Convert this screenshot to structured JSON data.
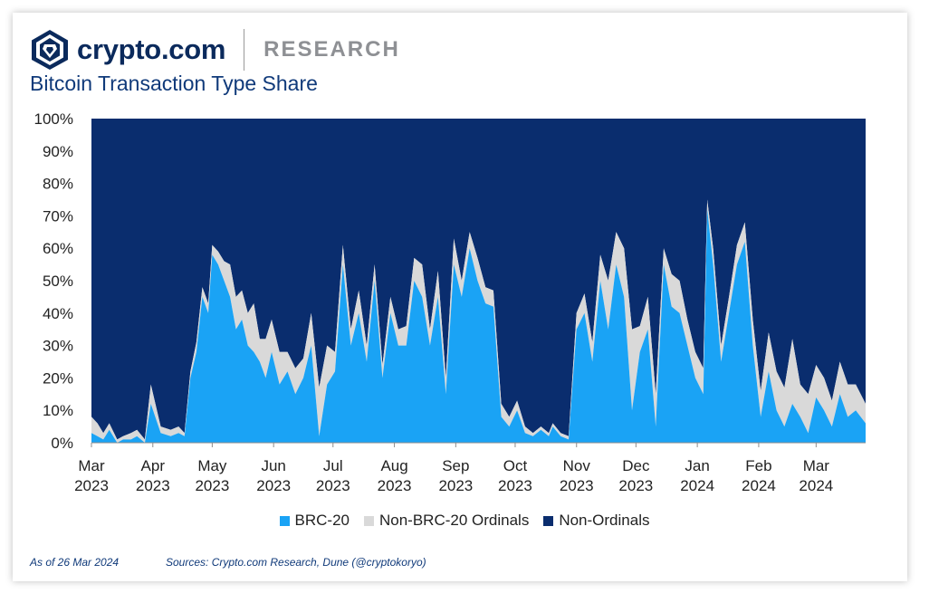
{
  "header": {
    "brand_name": "crypto.com",
    "brand_tag": "RESEARCH",
    "logo_icon": "crypto-com-lion-shield"
  },
  "chart_data": {
    "type": "area",
    "stacked": true,
    "percent": true,
    "title": "Bitcoin Transaction Type Share",
    "ylim": [
      0,
      100
    ],
    "y_ticks": [
      "0%",
      "10%",
      "20%",
      "30%",
      "40%",
      "50%",
      "60%",
      "70%",
      "80%",
      "90%",
      "100%"
    ],
    "x_ticks": [
      {
        "month": "Mar",
        "year": "2023"
      },
      {
        "month": "Apr",
        "year": "2023"
      },
      {
        "month": "May",
        "year": "2023"
      },
      {
        "month": "Jun",
        "year": "2023"
      },
      {
        "month": "Jul",
        "year": "2023"
      },
      {
        "month": "Aug",
        "year": "2023"
      },
      {
        "month": "Sep",
        "year": "2023"
      },
      {
        "month": "Oct",
        "year": "2023"
      },
      {
        "month": "Nov",
        "year": "2023"
      },
      {
        "month": "Dec",
        "year": "2023"
      },
      {
        "month": "Jan",
        "year": "2024"
      },
      {
        "month": "Feb",
        "year": "2024"
      },
      {
        "month": "Mar",
        "year": "2024"
      }
    ],
    "x": [
      "2023-03-01",
      "2023-03-04",
      "2023-03-07",
      "2023-03-10",
      "2023-03-14",
      "2023-03-17",
      "2023-03-21",
      "2023-03-24",
      "2023-03-28",
      "2023-03-31",
      "2023-04-05",
      "2023-04-10",
      "2023-04-14",
      "2023-04-17",
      "2023-04-20",
      "2023-04-23",
      "2023-04-26",
      "2023-04-29",
      "2023-05-01",
      "2023-05-04",
      "2023-05-07",
      "2023-05-10",
      "2023-05-13",
      "2023-05-16",
      "2023-05-19",
      "2023-05-22",
      "2023-05-25",
      "2023-05-28",
      "2023-05-31",
      "2023-06-04",
      "2023-06-08",
      "2023-06-12",
      "2023-06-16",
      "2023-06-20",
      "2023-06-24",
      "2023-06-28",
      "2023-07-02",
      "2023-07-06",
      "2023-07-10",
      "2023-07-14",
      "2023-07-18",
      "2023-07-22",
      "2023-07-26",
      "2023-07-30",
      "2023-08-03",
      "2023-08-07",
      "2023-08-11",
      "2023-08-15",
      "2023-08-19",
      "2023-08-23",
      "2023-08-27",
      "2023-08-31",
      "2023-09-04",
      "2023-09-08",
      "2023-09-12",
      "2023-09-16",
      "2023-09-20",
      "2023-09-24",
      "2023-09-28",
      "2023-10-02",
      "2023-10-06",
      "2023-10-10",
      "2023-10-14",
      "2023-10-18",
      "2023-10-20",
      "2023-10-24",
      "2023-10-28",
      "2023-11-01",
      "2023-11-05",
      "2023-11-09",
      "2023-11-13",
      "2023-11-17",
      "2023-11-21",
      "2023-11-25",
      "2023-11-29",
      "2023-12-03",
      "2023-12-07",
      "2023-12-11",
      "2023-12-15",
      "2023-12-19",
      "2023-12-23",
      "2023-12-27",
      "2023-12-31",
      "2024-01-04",
      "2024-01-06",
      "2024-01-09",
      "2024-01-13",
      "2024-01-17",
      "2024-01-21",
      "2024-01-25",
      "2024-01-29",
      "2024-02-02",
      "2024-02-06",
      "2024-02-10",
      "2024-02-14",
      "2024-02-18",
      "2024-02-22",
      "2024-02-26",
      "2024-03-01",
      "2024-03-05",
      "2024-03-09",
      "2024-03-13",
      "2024-03-17",
      "2024-03-21",
      "2024-03-26"
    ],
    "series": [
      {
        "name": "BRC-20",
        "values": [
          3,
          2,
          1,
          4,
          0,
          1,
          1,
          2,
          0,
          12,
          3,
          2,
          3,
          2,
          20,
          28,
          45,
          40,
          58,
          55,
          50,
          45,
          35,
          38,
          30,
          28,
          25,
          20,
          28,
          18,
          22,
          15,
          20,
          30,
          2,
          18,
          22,
          55,
          30,
          40,
          25,
          50,
          20,
          40,
          30,
          30,
          50,
          45,
          30,
          45,
          15,
          55,
          45,
          60,
          50,
          43,
          42,
          8,
          5,
          10,
          3,
          2,
          4,
          2,
          5,
          2,
          1,
          35,
          40,
          25,
          50,
          35,
          55,
          45,
          10,
          28,
          35,
          5,
          55,
          42,
          40,
          30,
          20,
          15,
          72,
          55,
          25,
          40,
          55,
          62,
          30,
          8,
          22,
          10,
          5,
          12,
          8,
          3,
          14,
          10,
          5,
          15,
          8,
          10,
          6
        ]
      },
      {
        "name": "Non-BRC-20 Ordinals",
        "values": [
          5,
          4,
          2,
          2,
          1,
          1,
          2,
          2,
          1,
          6,
          2,
          2,
          2,
          1,
          2,
          3,
          3,
          3,
          3,
          4,
          6,
          10,
          10,
          9,
          10,
          15,
          7,
          12,
          10,
          10,
          6,
          8,
          6,
          10,
          15,
          12,
          6,
          6,
          5,
          7,
          5,
          5,
          4,
          5,
          5,
          6,
          7,
          10,
          5,
          8,
          5,
          8,
          5,
          5,
          7,
          5,
          5,
          4,
          3,
          3,
          2,
          1,
          1,
          1,
          1,
          1,
          1,
          5,
          6,
          6,
          8,
          15,
          10,
          15,
          25,
          8,
          10,
          10,
          5,
          10,
          10,
          8,
          8,
          8,
          3,
          5,
          5,
          5,
          6,
          6,
          8,
          8,
          12,
          12,
          12,
          20,
          10,
          12,
          10,
          10,
          8,
          10,
          10,
          8,
          6
        ]
      },
      {
        "name": "Non-Ordinals",
        "values": [
          92,
          94,
          97,
          94,
          99,
          98,
          97,
          96,
          99,
          82,
          95,
          96,
          95,
          97,
          78,
          69,
          52,
          57,
          39,
          41,
          44,
          45,
          55,
          53,
          60,
          57,
          68,
          68,
          62,
          72,
          72,
          77,
          74,
          60,
          83,
          70,
          72,
          39,
          65,
          53,
          70,
          45,
          76,
          55,
          65,
          64,
          43,
          45,
          65,
          47,
          80,
          37,
          50,
          35,
          43,
          52,
          53,
          88,
          92,
          87,
          95,
          97,
          95,
          97,
          94,
          97,
          98,
          60,
          54,
          69,
          42,
          50,
          35,
          40,
          65,
          64,
          55,
          85,
          40,
          48,
          50,
          62,
          72,
          77,
          25,
          40,
          70,
          55,
          39,
          32,
          62,
          84,
          66,
          78,
          83,
          68,
          82,
          85,
          76,
          80,
          87,
          75,
          82,
          82,
          88
        ]
      }
    ],
    "colors": {
      "brc20": "#1aa3f5",
      "non_brc20_ordinals": "#d9d9d9",
      "non_ordinals": "#0a2d6e"
    }
  },
  "legend": [
    {
      "label": "BRC-20",
      "color": "#1aa3f5"
    },
    {
      "label": "Non-BRC-20 Ordinals",
      "color": "#d9d9d9"
    },
    {
      "label": "Non-Ordinals",
      "color": "#0a2d6e"
    }
  ],
  "footer": {
    "as_of": "As of 26 Mar 2024",
    "sources": "Sources: Crypto.com Research, Dune (@cryptokoryo)"
  }
}
